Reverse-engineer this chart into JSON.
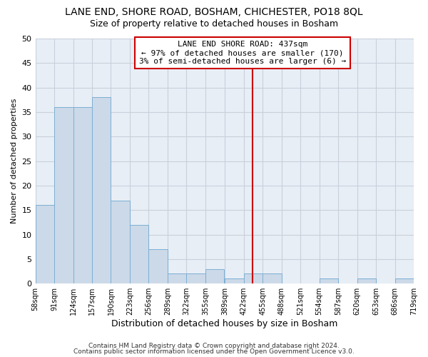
{
  "title": "LANE END, SHORE ROAD, BOSHAM, CHICHESTER, PO18 8QL",
  "subtitle": "Size of property relative to detached houses in Bosham",
  "xlabel": "Distribution of detached houses by size in Bosham",
  "ylabel": "Number of detached properties",
  "bar_color": "#ccd9e8",
  "bar_edgecolor": "#7bafd4",
  "bin_edges": [
    58,
    91,
    124,
    157,
    190,
    223,
    256,
    289,
    322,
    355,
    389,
    422,
    455,
    488,
    521,
    554,
    587,
    620,
    653,
    686,
    719
  ],
  "bar_heights": [
    16,
    36,
    36,
    38,
    17,
    12,
    7,
    2,
    2,
    3,
    1,
    2,
    2,
    0,
    0,
    1,
    0,
    1,
    0,
    1
  ],
  "tick_labels": [
    "58sqm",
    "91sqm",
    "124sqm",
    "157sqm",
    "190sqm",
    "223sqm",
    "256sqm",
    "289sqm",
    "322sqm",
    "355sqm",
    "389sqm",
    "422sqm",
    "455sqm",
    "488sqm",
    "521sqm",
    "554sqm",
    "587sqm",
    "620sqm",
    "653sqm",
    "686sqm",
    "719sqm"
  ],
  "vline_x": 437,
  "vline_color": "#cc0000",
  "ylim": [
    0,
    50
  ],
  "yticks": [
    0,
    5,
    10,
    15,
    20,
    25,
    30,
    35,
    40,
    45,
    50
  ],
  "grid_color": "#c8d0dc",
  "annotation_title": "LANE END SHORE ROAD: 437sqm",
  "annotation_line1": "← 97% of detached houses are smaller (170)",
  "annotation_line2": "3% of semi-detached houses are larger (6) →",
  "annotation_box_facecolor": "#ffffff",
  "annotation_box_edgecolor": "#cc0000",
  "footnote1": "Contains HM Land Registry data © Crown copyright and database right 2024.",
  "footnote2": "Contains public sector information licensed under the Open Government Licence v3.0.",
  "plot_bg_color": "#e8eef5",
  "fig_bg_color": "#ffffff",
  "title_fontsize": 10,
  "subtitle_fontsize": 9,
  "annot_fontsize": 8
}
